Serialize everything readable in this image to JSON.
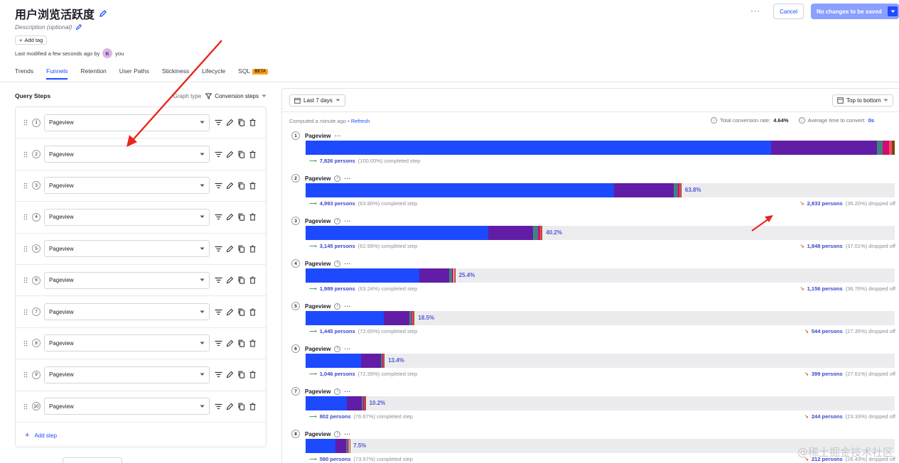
{
  "header": {
    "title": "用户浏览活跃度",
    "description": "Description (optional)",
    "add_tag": "Add tag",
    "last_modified": "Last modified a few seconds ago by",
    "avatar_letter": "K",
    "user": "you",
    "more": "···",
    "cancel": "Cancel",
    "save": "No changes to be saved"
  },
  "tabs": [
    {
      "label": "Trends"
    },
    {
      "label": "Funnels"
    },
    {
      "label": "Retention"
    },
    {
      "label": "User Paths"
    },
    {
      "label": "Stickiness"
    },
    {
      "label": "Lifecycle"
    },
    {
      "label": "SQL"
    }
  ],
  "tab_beta": "BETA",
  "query": {
    "title": "Query Steps",
    "graph_type_label": "Graph type",
    "graph_type_value": "Conversion steps",
    "add_step": "Add step",
    "steps": [
      {
        "n": "1",
        "event": "Pageview"
      },
      {
        "n": "2",
        "event": "Pageview"
      },
      {
        "n": "3",
        "event": "Pageview"
      },
      {
        "n": "4",
        "event": "Pageview"
      },
      {
        "n": "5",
        "event": "Pageview"
      },
      {
        "n": "6",
        "event": "Pageview"
      },
      {
        "n": "7",
        "event": "Pageview"
      },
      {
        "n": "8",
        "event": "Pageview"
      },
      {
        "n": "9",
        "event": "Pageview"
      },
      {
        "n": "10",
        "event": "Pageview"
      }
    ]
  },
  "results": {
    "date_range": "Last 7 days",
    "order": "Top to bottom",
    "computed": "Computed a minute ago •",
    "refresh": "Refresh",
    "total_label": "Total conversion rate:",
    "total_value": "4.64%",
    "avg_label": "Average time to convert:",
    "avg_value": "0s"
  },
  "colors": {
    "segments": [
      "#1d4aff",
      "#621da6",
      "#42827e",
      "#ce0e74",
      "#f14f58",
      "#7c440e"
    ]
  },
  "chart_data": {
    "type": "bar",
    "series_breakdown_note": "",
    "steps": [
      {
        "n": "1",
        "label": "Pageview",
        "pct": 100,
        "pct_label": "",
        "persons": "7,826 persons",
        "persons_pct": "(100.00%) completed step",
        "dropped": "",
        "dropped_pct": "",
        "split": [
          0.79,
          0.18,
          0.01,
          0.01,
          0.005,
          0.005
        ]
      },
      {
        "n": "2",
        "label": "Pageview",
        "pct": 63.8,
        "pct_label": "63.8%",
        "persons": "4,993 persons",
        "persons_pct": "(63.80%) completed step",
        "dropped": "2,833 persons",
        "dropped_pct": "(36.20%) dropped off",
        "split": [
          0.82,
          0.16,
          0.01,
          0.005,
          0.003,
          0.002
        ]
      },
      {
        "n": "3",
        "label": "Pageview",
        "pct": 40.2,
        "pct_label": "40.2%",
        "persons": "3,145 persons",
        "persons_pct": "(62.99%) completed step",
        "dropped": "1,848 persons",
        "dropped_pct": "(37.01%) dropped off",
        "split": [
          0.77,
          0.19,
          0.02,
          0.01,
          0.005,
          0.005
        ]
      },
      {
        "n": "4",
        "label": "Pageview",
        "pct": 25.4,
        "pct_label": "25.4%",
        "persons": "1,989 persons",
        "persons_pct": "(63.24%) completed step",
        "dropped": "1,156 persons",
        "dropped_pct": "(36.76%) dropped off",
        "split": [
          0.76,
          0.2,
          0.02,
          0.01,
          0.005,
          0.005
        ]
      },
      {
        "n": "5",
        "label": "Pageview",
        "pct": 18.5,
        "pct_label": "18.5%",
        "persons": "1,445 persons",
        "persons_pct": "(72.65%) completed step",
        "dropped": "544 persons",
        "dropped_pct": "(27.35%) dropped off",
        "split": [
          0.72,
          0.23,
          0.02,
          0.01,
          0.01,
          0.01
        ]
      },
      {
        "n": "6",
        "label": "Pageview",
        "pct": 13.4,
        "pct_label": "13.4%",
        "persons": "1,046 persons",
        "persons_pct": "(72.39%) completed step",
        "dropped": "399 persons",
        "dropped_pct": "(27.61%) dropped off",
        "split": [
          0.7,
          0.25,
          0.02,
          0.01,
          0.01,
          0.01
        ]
      },
      {
        "n": "7",
        "label": "Pageview",
        "pct": 10.2,
        "pct_label": "10.2%",
        "persons": "802 persons",
        "persons_pct": "(76.67%) completed step",
        "dropped": "244 persons",
        "dropped_pct": "(23.33%) dropped off",
        "split": [
          0.68,
          0.25,
          0.03,
          0.02,
          0.01,
          0.01
        ]
      },
      {
        "n": "8",
        "label": "Pageview",
        "pct": 7.5,
        "pct_label": "7.5%",
        "persons": "590 persons",
        "persons_pct": "(73.57%) completed step",
        "dropped": "212 persons",
        "dropped_pct": "(26.43%) dropped off",
        "split": [
          0.67,
          0.25,
          0.03,
          0.02,
          0.02,
          0.01
        ]
      }
    ]
  },
  "watermark": "@稀土掘金技术社区"
}
